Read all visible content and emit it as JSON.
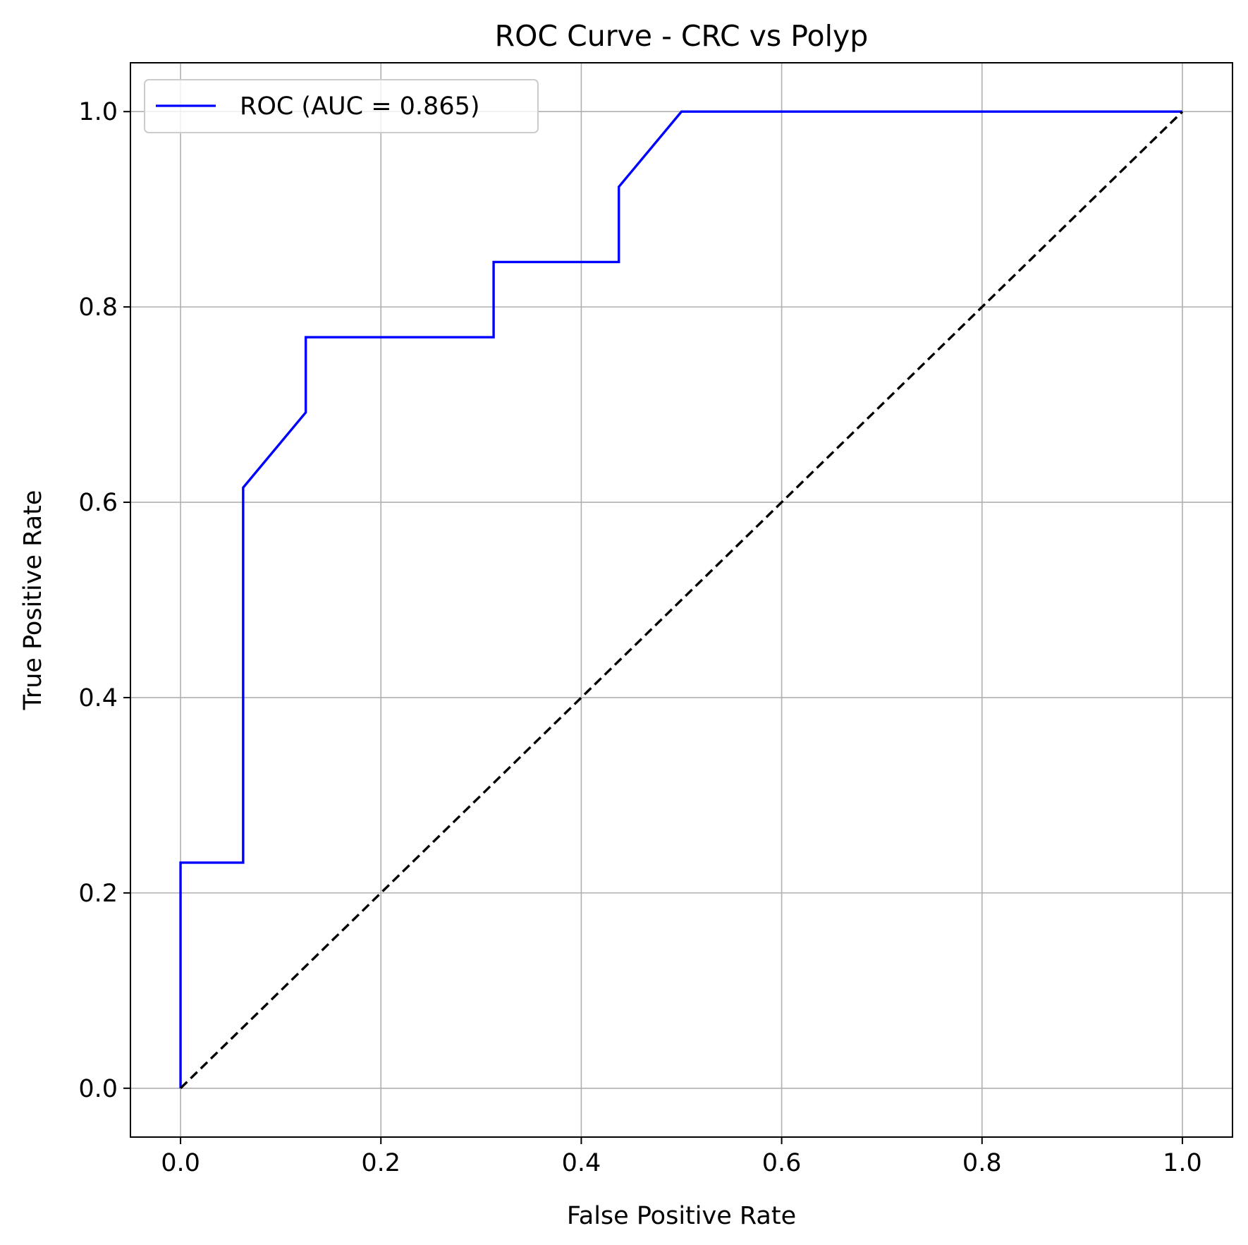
{
  "chart_data": {
    "type": "line",
    "title": "ROC Curve - CRC vs Polyp",
    "xlabel": "False Positive Rate",
    "ylabel": "True Positive Rate",
    "xlim": [
      -0.05,
      1.05
    ],
    "ylim": [
      -0.05,
      1.05
    ],
    "xticks": [
      0.0,
      0.2,
      0.4,
      0.6,
      0.8,
      1.0
    ],
    "yticks": [
      0.0,
      0.2,
      0.4,
      0.6,
      0.8,
      1.0
    ],
    "xtick_labels": [
      "0.0",
      "0.2",
      "0.4",
      "0.6",
      "0.8",
      "1.0"
    ],
    "ytick_labels": [
      "0.0",
      "0.2",
      "0.4",
      "0.6",
      "0.8",
      "1.0"
    ],
    "grid": true,
    "legend_position": "upper-left",
    "series": [
      {
        "name": "ROC (AUC = 0.865)",
        "color": "#0000ff",
        "style": "solid",
        "x": [
          0.0,
          0.0,
          0.0625,
          0.0625,
          0.125,
          0.125,
          0.3125,
          0.3125,
          0.4375,
          0.4375,
          0.5,
          1.0
        ],
        "y": [
          0.0,
          0.231,
          0.231,
          0.615,
          0.692,
          0.769,
          0.769,
          0.846,
          0.846,
          0.923,
          1.0,
          1.0
        ]
      },
      {
        "color": "#000000",
        "style": "dashed",
        "x": [
          0.0,
          1.0
        ],
        "y": [
          0.0,
          1.0
        ]
      }
    ]
  }
}
